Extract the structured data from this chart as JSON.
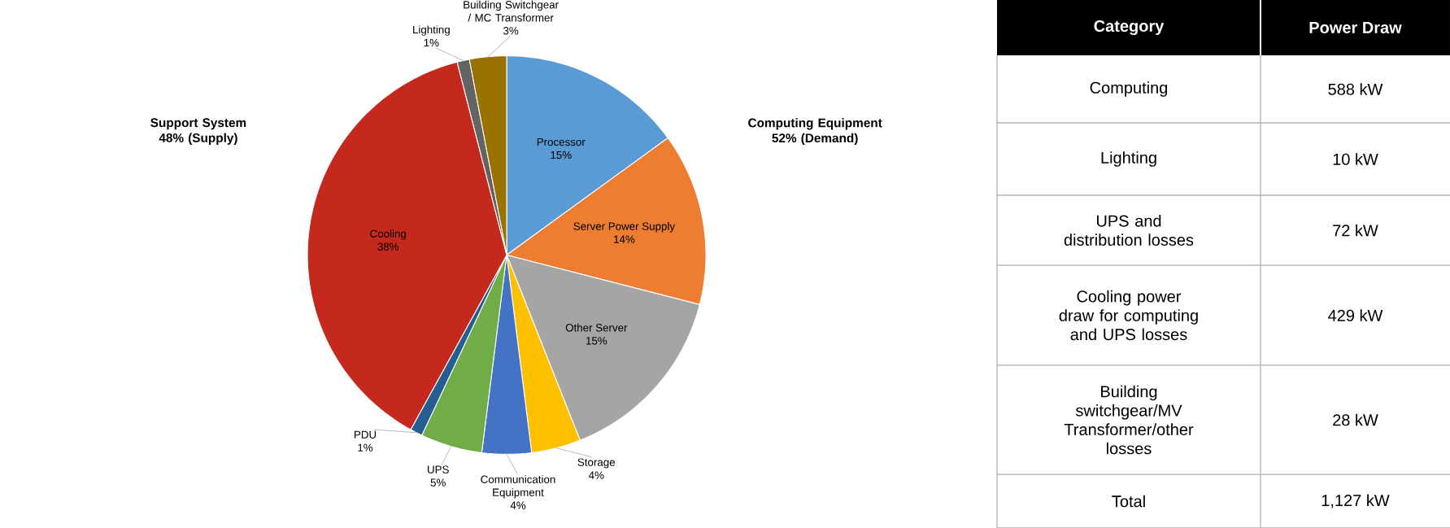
{
  "chart_data": [
    {
      "type": "pie",
      "categories": [
        "Processor",
        "Server Power Supply",
        "Other Server",
        "Storage",
        "Communication Equipment",
        "UPS",
        "PDU",
        "Cooling",
        "Lighting",
        "Building Switchgear / MC Transformer"
      ],
      "values": [
        15,
        14,
        15,
        4,
        4,
        5,
        1,
        38,
        1,
        3
      ],
      "value_labels": [
        "15%",
        "14%",
        "15%",
        "4%",
        "4%",
        "5%",
        "1%",
        "38%",
        "1%",
        "3%"
      ],
      "colors": [
        "#5b9bd5",
        "#ed7d31",
        "#a5a5a5",
        "#ffc000",
        "#4472c4",
        "#70ad47",
        "#255e91",
        "#c5281c",
        "#636363",
        "#997300"
      ],
      "annotations": [
        "Computing Equipment 52% (Demand)",
        "Support System 48% (Supply)"
      ]
    },
    {
      "type": "other",
      "annotations": [
        "Category",
        "Power Draw"
      ],
      "categories": [
        "Computing",
        "Lighting",
        "UPS and distribution losses",
        "Cooling power draw for computing and UPS losses",
        "Building switchgear/MV Transformer/other losses",
        "Total"
      ],
      "value_labels": [
        "588 kW",
        "10 kW",
        "72 kW",
        "429 kW",
        "28 kW",
        "1,127 kW"
      ]
    }
  ]
}
